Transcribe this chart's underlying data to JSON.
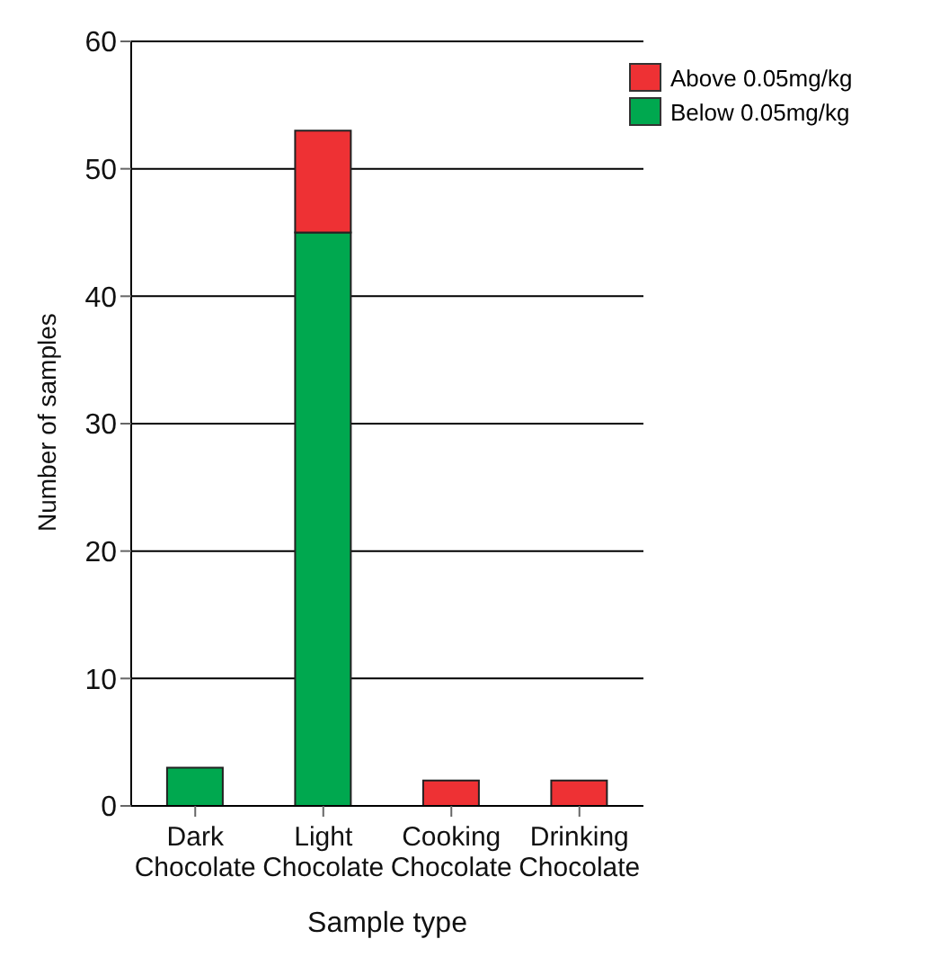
{
  "chart_data": {
    "type": "bar",
    "stacked": true,
    "xlabel": "Sample type",
    "ylabel": "Number of samples",
    "categories": [
      "Dark Chocolate",
      "Light Chocolate",
      "Cooking Chocolate",
      "Drinking Chocolate"
    ],
    "series": [
      {
        "name": "Below 0.05mg/kg",
        "color": "#00a84f",
        "values": [
          3,
          45,
          0,
          0
        ]
      },
      {
        "name": "Above 0.05mg/kg",
        "color": "#ee3134",
        "values": [
          0,
          8,
          2,
          2
        ]
      }
    ],
    "ylim": [
      0,
      60
    ],
    "yticks": [
      0,
      10,
      20,
      30,
      40,
      50,
      60
    ],
    "grid": "y",
    "legend": "top right"
  }
}
